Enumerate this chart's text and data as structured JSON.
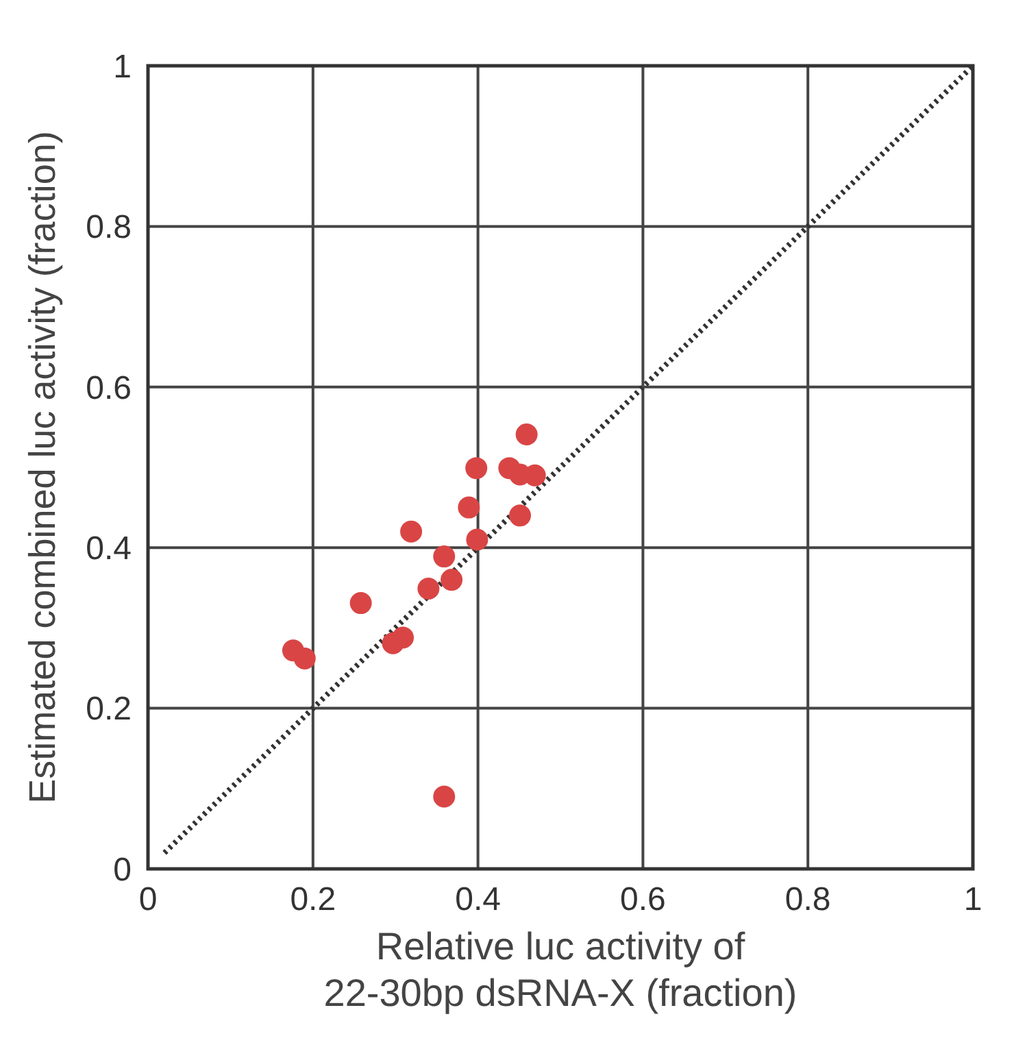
{
  "chart_data": {
    "type": "scatter",
    "xlabel": "Relative luc activity of\n22-30bp dsRNA-X (fraction)",
    "ylabel": "Estimated combined luc activity (fraction)",
    "xlim": [
      0,
      1
    ],
    "ylim": [
      0,
      1
    ],
    "xticks": [
      0,
      0.2,
      0.4,
      0.6,
      0.8,
      1
    ],
    "yticks": [
      0,
      0.2,
      0.4,
      0.6,
      0.8,
      1
    ],
    "grid": true,
    "series": [
      {
        "color": "#d94545",
        "marker": "circle",
        "x": [
          0.176,
          0.19,
          0.297,
          0.309,
          0.258,
          0.319,
          0.34,
          0.359,
          0.368,
          0.359,
          0.389,
          0.398,
          0.399,
          0.459,
          0.438,
          0.451,
          0.469,
          0.451
        ],
        "values": [
          0.272,
          0.262,
          0.281,
          0.288,
          0.331,
          0.42,
          0.349,
          0.389,
          0.36,
          0.09,
          0.45,
          0.499,
          0.41,
          0.541,
          0.499,
          0.491,
          0.49,
          0.44
        ]
      },
      {
        "type": "line",
        "color": "#333333",
        "line_style": "dotted",
        "x": [
          0.02,
          1
        ],
        "values": [
          0.02,
          1
        ]
      }
    ]
  }
}
